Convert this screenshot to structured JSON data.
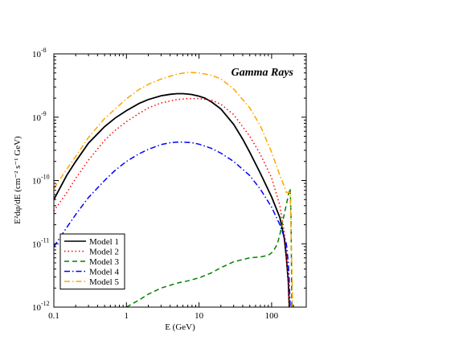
{
  "chart_data": {
    "type": "line",
    "xscale": "log",
    "yscale": "log",
    "xlim": [
      0.1,
      300
    ],
    "ylim": [
      1e-12,
      1e-08
    ],
    "xlabel": "E (GeV)",
    "ylabel": "E²dφ/dE  (cm⁻² s⁻¹ GeV)",
    "annotation": "Gamma Rays",
    "x_ticks": [
      {
        "value": 0.1,
        "label": "0.1"
      },
      {
        "value": 1,
        "label": "1"
      },
      {
        "value": 10,
        "label": "10"
      },
      {
        "value": 100,
        "label": "100"
      }
    ],
    "y_ticks": [
      {
        "value": 1e-12,
        "label": "10",
        "exp": "-12"
      },
      {
        "value": 1e-11,
        "label": "10",
        "exp": "-11"
      },
      {
        "value": 1e-10,
        "label": "10",
        "exp": "-10"
      },
      {
        "value": 1e-09,
        "label": "10",
        "exp": "-9"
      },
      {
        "value": 1e-08,
        "label": "10",
        "exp": "-8"
      }
    ],
    "grid": false,
    "legend_position": "bottom-left",
    "series": [
      {
        "name": "Model 1",
        "color": "#000000",
        "dash": "solid",
        "x": [
          0.1,
          0.15,
          0.2,
          0.3,
          0.5,
          0.7,
          1,
          1.5,
          2,
          3,
          4,
          5,
          6,
          7,
          8,
          10,
          12,
          15,
          20,
          30,
          40,
          50,
          70,
          100,
          130,
          150,
          160,
          170,
          175
        ],
        "y": [
          5e-11,
          1.2e-10,
          2e-10,
          3.9e-10,
          7.1e-10,
          9.7e-10,
          1.27e-09,
          1.65e-09,
          1.9e-09,
          2.18e-09,
          2.3e-09,
          2.35e-09,
          2.35e-09,
          2.32e-09,
          2.28e-09,
          2.15e-09,
          2e-09,
          1.73e-09,
          1.35e-09,
          7.7e-10,
          4.5e-10,
          2.8e-10,
          1.3e-10,
          5.5e-11,
          2.6e-11,
          1.2e-11,
          6e-12,
          2.5e-12,
          1e-12
        ]
      },
      {
        "name": "Model 2",
        "color": "#ff0000",
        "dash": "dotted",
        "x": [
          0.1,
          0.15,
          0.2,
          0.3,
          0.5,
          0.7,
          1,
          1.5,
          2,
          3,
          5,
          7,
          10,
          15,
          20,
          30,
          50,
          70,
          100,
          130,
          150,
          160,
          170,
          175
        ],
        "y": [
          3.3e-11,
          6.4e-11,
          1.08e-10,
          2.1e-10,
          4.3e-10,
          6.2e-10,
          8.5e-10,
          1.15e-09,
          1.4e-09,
          1.68e-09,
          1.9e-09,
          1.97e-09,
          1.97e-09,
          1.85e-09,
          1.6e-09,
          1.1e-09,
          5e-10,
          2.6e-10,
          1.1e-10,
          4e-11,
          1.5e-11,
          7e-12,
          2.5e-12,
          1e-12
        ]
      },
      {
        "name": "Model 3",
        "color": "#008000",
        "dash": "dashed",
        "x": [
          1,
          1.5,
          2,
          3,
          5,
          7,
          10,
          15,
          20,
          30,
          50,
          70,
          90,
          100,
          110,
          120,
          130,
          140,
          150,
          160,
          165,
          170,
          175,
          180,
          185,
          190
        ],
        "y": [
          1e-12,
          1.3e-12,
          1.6e-12,
          2e-12,
          2.4e-12,
          2.6e-12,
          2.9e-12,
          3.5e-12,
          4.2e-12,
          5.2e-12,
          6e-12,
          6.2e-12,
          6.6e-12,
          7.2e-12,
          8.3e-12,
          1e-11,
          1.4e-11,
          2.1e-11,
          3e-11,
          4.2e-11,
          5e-11,
          6e-11,
          6.6e-11,
          7.5e-11,
          3e-11,
          1e-12
        ]
      },
      {
        "name": "Model 4",
        "color": "#0000ff",
        "dash": "dashdot",
        "x": [
          0.1,
          0.15,
          0.2,
          0.3,
          0.5,
          0.7,
          1,
          1.5,
          2,
          3,
          4,
          5,
          6,
          7,
          8,
          10,
          15,
          20,
          30,
          50,
          70,
          100,
          130,
          150,
          160,
          170,
          175,
          180
        ],
        "y": [
          9e-12,
          1.8e-11,
          2.9e-11,
          5.4e-11,
          1e-10,
          1.45e-10,
          2e-10,
          2.65e-10,
          3.1e-10,
          3.7e-10,
          3.95e-10,
          4.05e-10,
          4.05e-10,
          4e-10,
          3.95e-10,
          3.75e-10,
          3.2e-10,
          2.7e-10,
          2e-10,
          1.2e-10,
          7.3e-11,
          3.8e-11,
          2e-11,
          1.25e-11,
          1e-11,
          5e-12,
          2.5e-12,
          1e-12
        ]
      },
      {
        "name": "Model 5",
        "color": "#ffa500",
        "dash": "dashdot",
        "x": [
          0.1,
          0.15,
          0.2,
          0.3,
          0.5,
          0.7,
          1,
          1.5,
          2,
          3,
          5,
          7,
          10,
          15,
          20,
          30,
          50,
          70,
          100,
          130,
          150,
          160,
          170,
          180,
          185,
          190,
          195
        ],
        "y": [
          7.5e-11,
          1.5e-10,
          2.4e-10,
          4.8e-10,
          9.5e-10,
          1.35e-09,
          1.95e-09,
          2.75e-09,
          3.3e-09,
          4e-09,
          4.8e-09,
          5.1e-09,
          5e-09,
          4.6e-09,
          4e-09,
          2.8e-09,
          1.4e-09,
          7.3e-10,
          2.8e-10,
          1.2e-10,
          8e-11,
          6.5e-11,
          6.5e-11,
          6.5e-11,
          2e-11,
          4e-12,
          1e-12
        ]
      }
    ]
  }
}
